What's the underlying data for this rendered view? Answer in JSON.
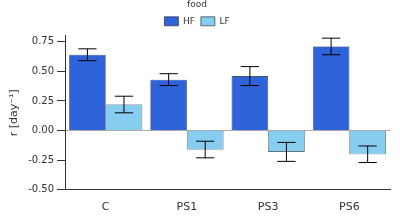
{
  "chart_data": {
    "type": "bar",
    "categories": [
      "C",
      "PS1",
      "PS3",
      "PS6"
    ],
    "series": [
      {
        "name": "HF",
        "color": "#2f63d9",
        "values": [
          0.64,
          0.43,
          0.46,
          0.71
        ],
        "errors": [
          0.05,
          0.05,
          0.08,
          0.07
        ]
      },
      {
        "name": "LF",
        "color": "#86cdef",
        "values": [
          0.22,
          -0.16,
          -0.18,
          -0.2
        ],
        "errors": [
          0.07,
          0.07,
          0.08,
          0.07
        ]
      }
    ],
    "y_label": "r [day⁻¹]",
    "legend_title": "food",
    "legend": "top",
    "ylim": [
      -0.5,
      0.8
    ],
    "yticks": [
      {
        "value": -0.5,
        "label": "-0.50"
      },
      {
        "value": -0.25,
        "label": "-0.25"
      },
      {
        "value": 0,
        "label": "0.00"
      },
      {
        "value": 0.25,
        "label": "0.25"
      },
      {
        "value": 0.5,
        "label": "0.50"
      },
      {
        "value": 0.75,
        "label": "0.75"
      }
    ],
    "grid": false
  }
}
